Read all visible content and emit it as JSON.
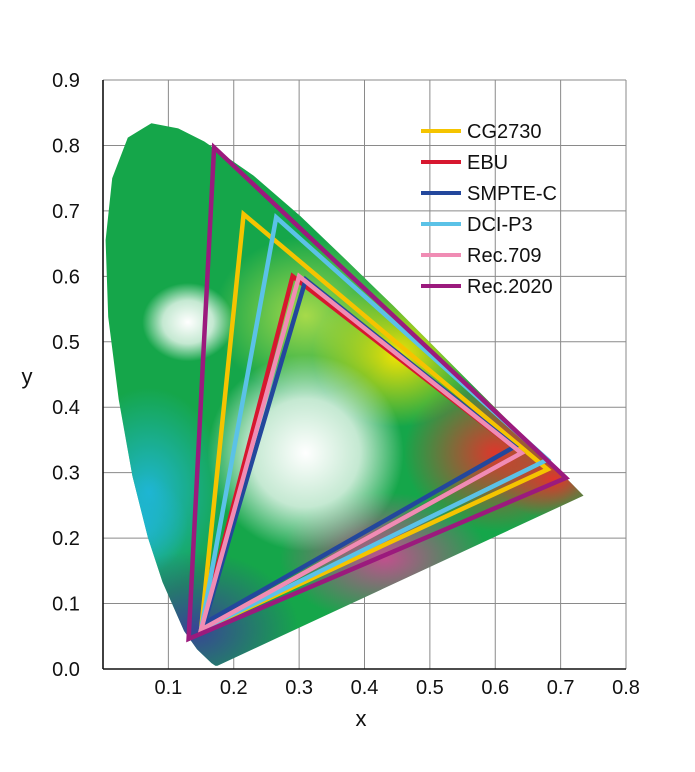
{
  "chart_data": {
    "type": "scatter",
    "title": "",
    "xlabel": "x",
    "ylabel": "y",
    "xlim": [
      0,
      0.8
    ],
    "ylim": [
      0,
      0.9
    ],
    "x_ticks": [
      "0.1",
      "0.2",
      "0.3",
      "0.4",
      "0.5",
      "0.6",
      "0.7",
      "0.8"
    ],
    "y_ticks": [
      "0.0",
      "0.1",
      "0.2",
      "0.3",
      "0.4",
      "0.5",
      "0.6",
      "0.7",
      "0.8",
      "0.9"
    ],
    "grid": true,
    "legend_position": "top-right",
    "spectral_locus": [
      [
        0.175,
        0.005
      ],
      [
        0.172,
        0.005
      ],
      [
        0.166,
        0.009
      ],
      [
        0.144,
        0.03
      ],
      [
        0.124,
        0.058
      ],
      [
        0.091,
        0.133
      ],
      [
        0.069,
        0.2
      ],
      [
        0.045,
        0.295
      ],
      [
        0.024,
        0.412
      ],
      [
        0.008,
        0.538
      ],
      [
        0.004,
        0.655
      ],
      [
        0.014,
        0.75
      ],
      [
        0.038,
        0.812
      ],
      [
        0.074,
        0.834
      ],
      [
        0.115,
        0.826
      ],
      [
        0.155,
        0.806
      ],
      [
        0.23,
        0.754
      ],
      [
        0.302,
        0.692
      ],
      [
        0.373,
        0.624
      ],
      [
        0.444,
        0.555
      ],
      [
        0.512,
        0.487
      ],
      [
        0.575,
        0.424
      ],
      [
        0.627,
        0.372
      ],
      [
        0.666,
        0.334
      ],
      [
        0.692,
        0.308
      ],
      [
        0.714,
        0.286
      ],
      [
        0.735,
        0.265
      ]
    ],
    "series": [
      {
        "name": "CG2730",
        "color": "#f5c400",
        "points": [
          [
            0.68,
            0.305
          ],
          [
            0.215,
            0.695
          ],
          [
            0.15,
            0.06
          ]
        ]
      },
      {
        "name": "EBU",
        "color": "#d7172f",
        "points": [
          [
            0.64,
            0.33
          ],
          [
            0.29,
            0.6
          ],
          [
            0.15,
            0.06
          ]
        ]
      },
      {
        "name": "SMPTE-C",
        "color": "#23479c",
        "points": [
          [
            0.63,
            0.34
          ],
          [
            0.31,
            0.595
          ],
          [
            0.155,
            0.07
          ]
        ]
      },
      {
        "name": "DCI-P3",
        "color": "#5bc2e7",
        "points": [
          [
            0.68,
            0.32
          ],
          [
            0.265,
            0.69
          ],
          [
            0.15,
            0.06
          ]
        ]
      },
      {
        "name": "Rec.709",
        "color": "#f08cb4",
        "points": [
          [
            0.64,
            0.33
          ],
          [
            0.3,
            0.6
          ],
          [
            0.15,
            0.06
          ]
        ]
      },
      {
        "name": "Rec.2020",
        "color": "#9b1a7d",
        "points": [
          [
            0.708,
            0.292
          ],
          [
            0.17,
            0.797
          ],
          [
            0.131,
            0.046
          ]
        ]
      }
    ]
  }
}
